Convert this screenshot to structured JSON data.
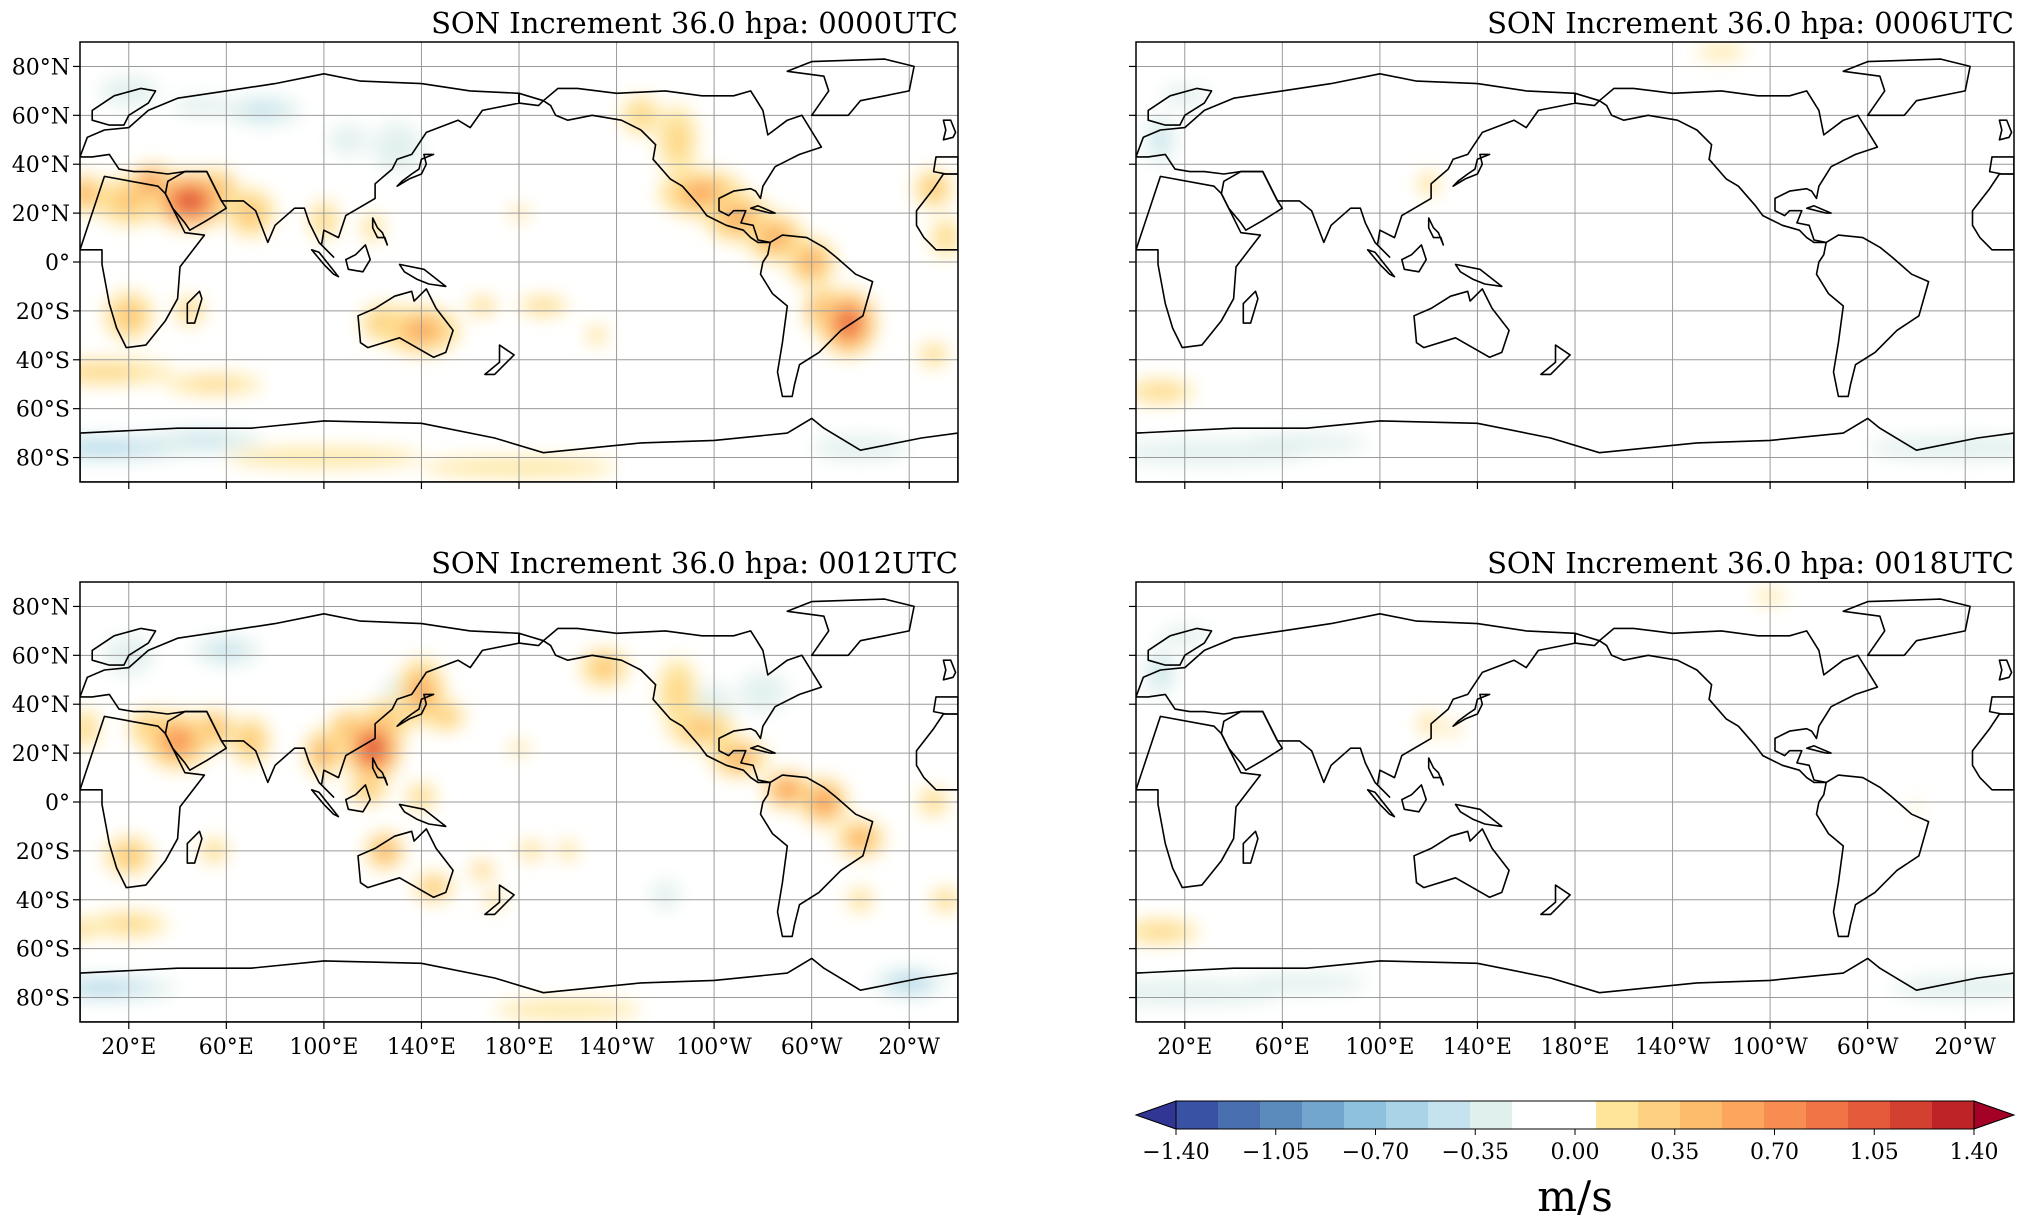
{
  "panels": [
    {
      "title": "SON Increment 36.0 hpa: 0000UTC",
      "strength": 1.0,
      "show_lat_labels": true,
      "show_lon_labels": false
    },
    {
      "title": "SON Increment 36.0 hpa: 0006UTC",
      "strength": 0.25,
      "show_lat_labels": false,
      "show_lon_labels": false
    },
    {
      "title": "SON Increment 36.0 hpa: 0012UTC",
      "strength": 0.85,
      "show_lat_labels": true,
      "show_lon_labels": true
    },
    {
      "title": "SON Increment 36.0 hpa: 0018UTC",
      "strength": 0.25,
      "show_lat_labels": false,
      "show_lon_labels": true
    }
  ],
  "lat_ticks": [
    "80°N",
    "60°N",
    "40°N",
    "20°N",
    "0°",
    "20°S",
    "40°S",
    "60°S",
    "80°S"
  ],
  "lon_ticks": [
    "20°E",
    "60°E",
    "100°E",
    "140°E",
    "180°E",
    "140°W",
    "100°W",
    "60°W",
    "20°W"
  ],
  "colorbar": {
    "tick_labels": [
      "−1.40",
      "−1.05",
      "−0.70",
      "−0.35",
      "0.00",
      "0.35",
      "0.70",
      "1.05",
      "1.40"
    ],
    "unit": "m/s",
    "colors": [
      "#313695",
      "#3a52a3",
      "#4a6fb0",
      "#5b8bbd",
      "#73a6ce",
      "#8ec1dd",
      "#a9d4e8",
      "#c5e3ef",
      "#e0f0ec",
      "#ffffff",
      "#ffffff",
      "#fee59a",
      "#fed182",
      "#fdbb6c",
      "#fca55d",
      "#f88d52",
      "#f07446",
      "#e45a3b",
      "#d3402f",
      "#bd2327",
      "#a50026"
    ]
  },
  "chart_data": {
    "type": "heatmap",
    "quantity": "SON increment at 36.0 hPa",
    "unit": "m/s",
    "color_range": [
      -1.4,
      1.4
    ],
    "color_step": 0.14,
    "panels": [
      {
        "title": "SON Increment 36.0 hpa: 0000UTC",
        "max_positive": 1.2,
        "max_negative": -0.5,
        "strong_regions": [
          "Arabian Peninsula",
          "South America",
          "Central America",
          "Australia",
          "Sahara"
        ]
      },
      {
        "title": "SON Increment 36.0 hpa: 0006UTC",
        "max_positive": 0.4,
        "max_negative": -0.35,
        "strong_regions": [
          "Southern Ocean",
          "Korea/Japan"
        ]
      },
      {
        "title": "SON Increment 36.0 hpa: 0012UTC",
        "max_positive": 1.3,
        "max_negative": -0.6,
        "strong_regions": [
          "Philippines/South China",
          "North Pacific",
          "Central America",
          "Arabian Peninsula"
        ]
      },
      {
        "title": "SON Increment 36.0 hpa: 0018UTC",
        "max_positive": 0.4,
        "max_negative": -0.35,
        "strong_regions": [
          "Southern Ocean",
          "Korea/Japan"
        ]
      }
    ]
  }
}
